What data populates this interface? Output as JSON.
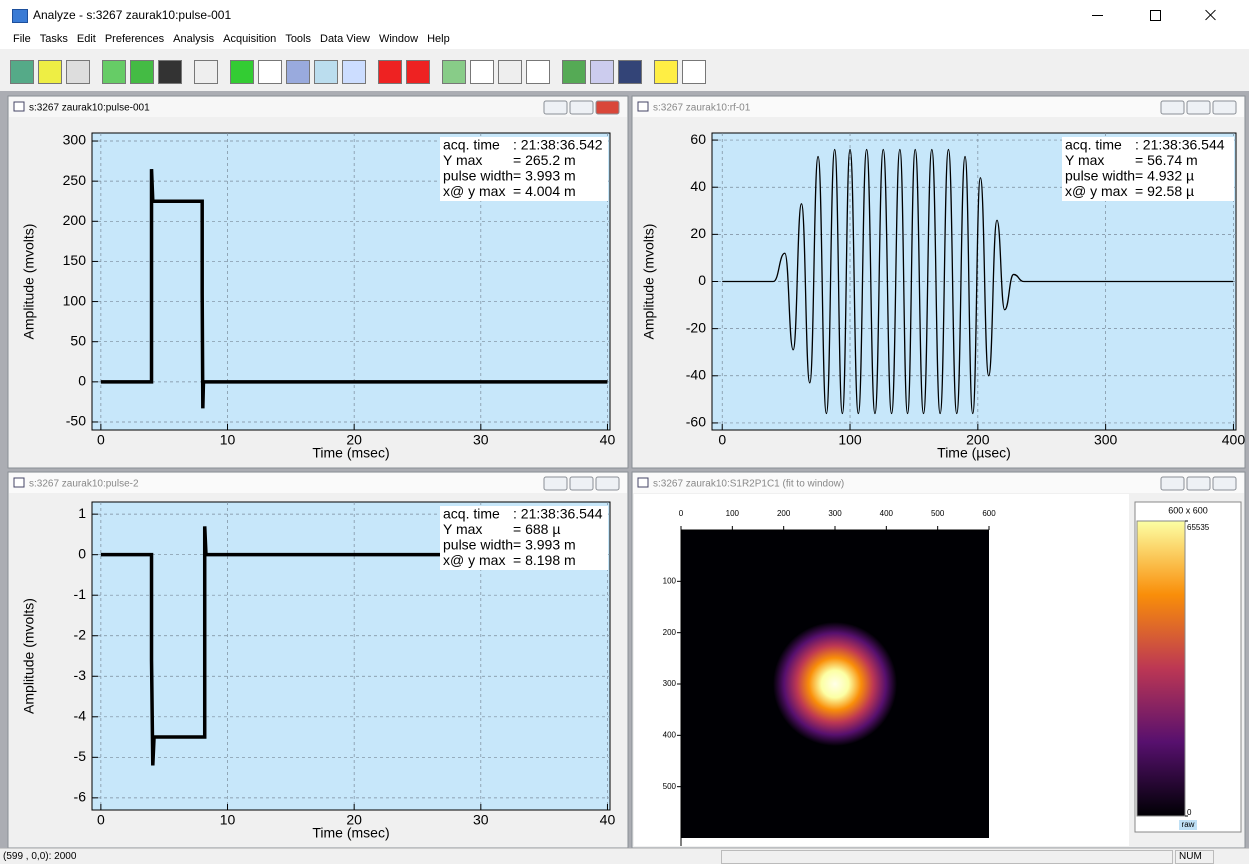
{
  "window": {
    "title": "Analyze - s:3267 zaurak10:pulse-001"
  },
  "menu": [
    "File",
    "Tasks",
    "Edit",
    "Preferences",
    "Analysis",
    "Acquisition",
    "Tools",
    "Data View",
    "Window",
    "Help"
  ],
  "status": {
    "position": "(599 , 0,0): 2000",
    "num": "NUM"
  },
  "chart_data": [
    {
      "type": "line",
      "title": "s:3267 zaurak10:pulse-001",
      "xlabel": "Time (msec)",
      "ylabel": "Amplitude (mvolts)",
      "xlim": [
        -0.7,
        40.2
      ],
      "ylim": [
        -60,
        310
      ],
      "xticks": [
        0,
        10,
        20,
        30,
        40
      ],
      "yticks": [
        -50,
        0,
        50,
        100,
        150,
        200,
        250,
        300
      ],
      "grid": true,
      "series": [
        {
          "color": "#000000",
          "x": [
            0,
            4.0,
            4.0,
            4.1,
            8.0,
            8.0,
            8.05,
            8.1,
            40
          ],
          "values": [
            0,
            0,
            265,
            225,
            225,
            110,
            -33,
            0,
            0
          ]
        }
      ],
      "info": [
        [
          "acq. time",
          ": 21:38:36.542"
        ],
        [
          "Y max",
          "= 265.2 m"
        ],
        [
          "pulse width",
          "= 3.993 m"
        ],
        [
          "x@ y max",
          "= 4.004 m"
        ]
      ]
    },
    {
      "type": "line",
      "title": "s:3267 zaurak10:rf-01",
      "xlabel": "Time (µsec)",
      "ylabel": "Amplitude (mvolts)",
      "xlim": [
        -8,
        402
      ],
      "ylim": [
        -63,
        63
      ],
      "xticks": [
        0,
        100,
        200,
        300,
        400
      ],
      "yticks": [
        -60,
        -40,
        -20,
        0,
        20,
        40,
        60
      ],
      "grid": true,
      "smooth": true,
      "series": [
        {
          "color": "#000000",
          "x": [
            0,
            40,
            49,
            55.5,
            62,
            68.5,
            75,
            81.5,
            88,
            94,
            100,
            106.5,
            113,
            119.5,
            126,
            132.5,
            139,
            145,
            151,
            157.5,
            164,
            170.5,
            177,
            183.5,
            190,
            196,
            202,
            208.5,
            215,
            221,
            228,
            236,
            400
          ],
          "values": [
            0,
            0,
            12,
            -29,
            33,
            -43,
            53,
            -56,
            56,
            -56,
            56,
            -56,
            56,
            -56,
            56,
            -56,
            56,
            -56,
            56,
            -56,
            56,
            -56,
            56,
            -56,
            53,
            -56,
            44,
            -40,
            26,
            -12,
            3,
            0,
            0
          ]
        }
      ],
      "info": [
        [
          "acq. time",
          ": 21:38:36.544"
        ],
        [
          "Y max",
          "= 56.74 m"
        ],
        [
          "pulse width",
          "= 4.932 µ"
        ],
        [
          "x@ y max",
          "= 92.58 µ"
        ]
      ]
    },
    {
      "type": "line",
      "title": "s:3267 zaurak10:pulse-2",
      "xlabel": "Time (msec)",
      "ylabel": "Amplitude (mvolts)",
      "xlim": [
        -0.7,
        40.2
      ],
      "ylim": [
        -6.3,
        1.3
      ],
      "xticks": [
        0,
        10,
        20,
        30,
        40
      ],
      "yticks": [
        -6,
        -5,
        -4,
        -3,
        -2,
        -1,
        0,
        1
      ],
      "grid": true,
      "series": [
        {
          "color": "#000000",
          "x": [
            0,
            4.0,
            4.0,
            4.1,
            4.2,
            8.2,
            8.2,
            8.3,
            40
          ],
          "values": [
            0,
            0,
            -2.6,
            -5.2,
            -4.5,
            -4.5,
            0.7,
            0,
            0
          ]
        }
      ],
      "info": [
        [
          "acq. time",
          ": 21:38:36.544"
        ],
        [
          "Y max",
          "= 688 µ"
        ],
        [
          "pulse width",
          "= 3.993 m"
        ],
        [
          "x@ y max",
          "= 8.198 m"
        ]
      ]
    },
    {
      "type": "heatmap",
      "title": "s:3267 zaurak10:S1R2P1C1 (fit to window)",
      "xlim": [
        0,
        600
      ],
      "ylim": [
        0,
        600
      ],
      "xticks": [
        0,
        100,
        200,
        300,
        400,
        500,
        600
      ],
      "yticks": [
        100,
        200,
        300,
        400,
        500
      ],
      "colormap": "inferno",
      "peak": {
        "x": 300,
        "y": 300
      },
      "colorbar": {
        "label": "600 x 600",
        "ticks": [
          0,
          65535
        ],
        "unit": "raw"
      }
    }
  ]
}
